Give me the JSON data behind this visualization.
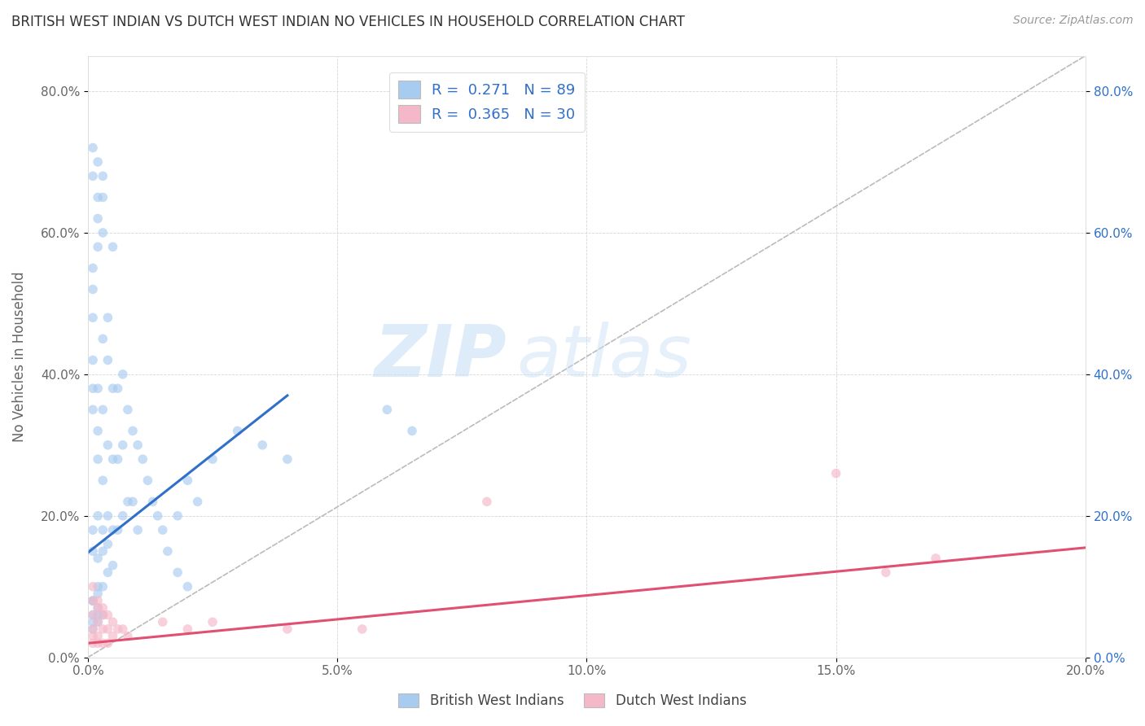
{
  "title": "BRITISH WEST INDIAN VS DUTCH WEST INDIAN NO VEHICLES IN HOUSEHOLD CORRELATION CHART",
  "source": "Source: ZipAtlas.com",
  "ylabel": "No Vehicles in Household",
  "xlim": [
    0.0,
    0.2
  ],
  "ylim": [
    0.0,
    0.85
  ],
  "xticks": [
    0.0,
    0.05,
    0.1,
    0.15,
    0.2
  ],
  "yticks": [
    0.0,
    0.2,
    0.4,
    0.6,
    0.8
  ],
  "xticklabels_left": [
    "0.0%",
    "",
    "",
    "",
    ""
  ],
  "xticklabels_bottom": [
    "0.0%",
    "5.0%",
    "10.0%",
    "15.0%",
    "20.0%"
  ],
  "yticklabels_left": [
    "0.0%",
    "20.0%",
    "40.0%",
    "60.0%",
    "80.0%"
  ],
  "yticklabels_right": [
    "0.0%",
    "20.0%",
    "40.0%",
    "60.0%",
    "80.0%"
  ],
  "blue_color": "#A8CBF0",
  "pink_color": "#F5B8C8",
  "blue_line_color": "#3070C8",
  "pink_line_color": "#E05070",
  "ref_line_color": "#BBBBBB",
  "legend_label1": "British West Indians",
  "legend_label2": "Dutch West Indians",
  "R1": "0.271",
  "N1": "89",
  "R2": "0.365",
  "N2": "30",
  "watermark_zip": "ZIP",
  "watermark_atlas": "atlas",
  "blue_scatter_x": [
    0.001,
    0.001,
    0.001,
    0.001,
    0.001,
    0.001,
    0.001,
    0.001,
    0.002,
    0.002,
    0.002,
    0.002,
    0.002,
    0.002,
    0.002,
    0.003,
    0.003,
    0.003,
    0.003,
    0.003,
    0.003,
    0.004,
    0.004,
    0.004,
    0.004,
    0.005,
    0.005,
    0.005,
    0.005,
    0.006,
    0.006,
    0.006,
    0.007,
    0.007,
    0.007,
    0.008,
    0.008,
    0.009,
    0.009,
    0.01,
    0.01,
    0.011,
    0.012,
    0.013,
    0.014,
    0.015,
    0.016,
    0.018,
    0.02,
    0.001,
    0.002,
    0.003,
    0.035,
    0.04,
    0.001,
    0.001,
    0.002,
    0.002,
    0.003,
    0.001,
    0.002,
    0.003,
    0.004,
    0.005,
    0.002,
    0.003,
    0.004,
    0.001,
    0.002,
    0.001,
    0.002,
    0.001,
    0.03,
    0.025,
    0.02,
    0.022,
    0.018,
    0.06,
    0.065
  ],
  "blue_scatter_y": [
    0.55,
    0.52,
    0.48,
    0.42,
    0.38,
    0.35,
    0.18,
    0.15,
    0.62,
    0.58,
    0.38,
    0.32,
    0.28,
    0.2,
    0.1,
    0.68,
    0.65,
    0.45,
    0.35,
    0.25,
    0.18,
    0.48,
    0.42,
    0.3,
    0.2,
    0.58,
    0.38,
    0.28,
    0.18,
    0.38,
    0.28,
    0.18,
    0.4,
    0.3,
    0.2,
    0.35,
    0.22,
    0.32,
    0.22,
    0.3,
    0.18,
    0.28,
    0.25,
    0.22,
    0.2,
    0.18,
    0.15,
    0.12,
    0.1,
    0.08,
    0.07,
    0.06,
    0.3,
    0.28,
    0.72,
    0.68,
    0.7,
    0.65,
    0.6,
    0.08,
    0.09,
    0.1,
    0.12,
    0.13,
    0.14,
    0.15,
    0.16,
    0.05,
    0.06,
    0.04,
    0.05,
    0.06,
    0.32,
    0.28,
    0.25,
    0.22,
    0.2,
    0.35,
    0.32
  ],
  "pink_scatter_x": [
    0.001,
    0.001,
    0.001,
    0.001,
    0.001,
    0.001,
    0.002,
    0.002,
    0.002,
    0.002,
    0.002,
    0.003,
    0.003,
    0.003,
    0.003,
    0.004,
    0.004,
    0.004,
    0.005,
    0.005,
    0.006,
    0.007,
    0.008,
    0.015,
    0.02,
    0.025,
    0.04,
    0.055,
    0.08,
    0.15,
    0.16,
    0.17
  ],
  "pink_scatter_y": [
    0.1,
    0.08,
    0.06,
    0.04,
    0.03,
    0.02,
    0.08,
    0.07,
    0.05,
    0.03,
    0.02,
    0.07,
    0.06,
    0.04,
    0.02,
    0.06,
    0.04,
    0.02,
    0.05,
    0.03,
    0.04,
    0.04,
    0.03,
    0.05,
    0.04,
    0.05,
    0.04,
    0.04,
    0.22,
    0.26,
    0.12,
    0.14
  ],
  "blue_line_x": [
    0.0,
    0.04
  ],
  "blue_line_y": [
    0.148,
    0.37
  ],
  "pink_line_x": [
    0.0,
    0.2
  ],
  "pink_line_y": [
    0.02,
    0.155
  ],
  "ref_line_x": [
    0.0,
    0.2
  ],
  "ref_line_y": [
    0.0,
    0.85
  ],
  "figsize": [
    14.06,
    8.92
  ],
  "dpi": 100,
  "background_color": "#FFFFFF",
  "grid_color": "#CCCCCC",
  "title_color": "#333333",
  "axis_label_color": "#666666",
  "tick_left_color": "#666666",
  "tick_right_color": "#3070C8",
  "legend_text_color": "#3070C8",
  "marker_size": 70,
  "marker_alpha": 0.65
}
